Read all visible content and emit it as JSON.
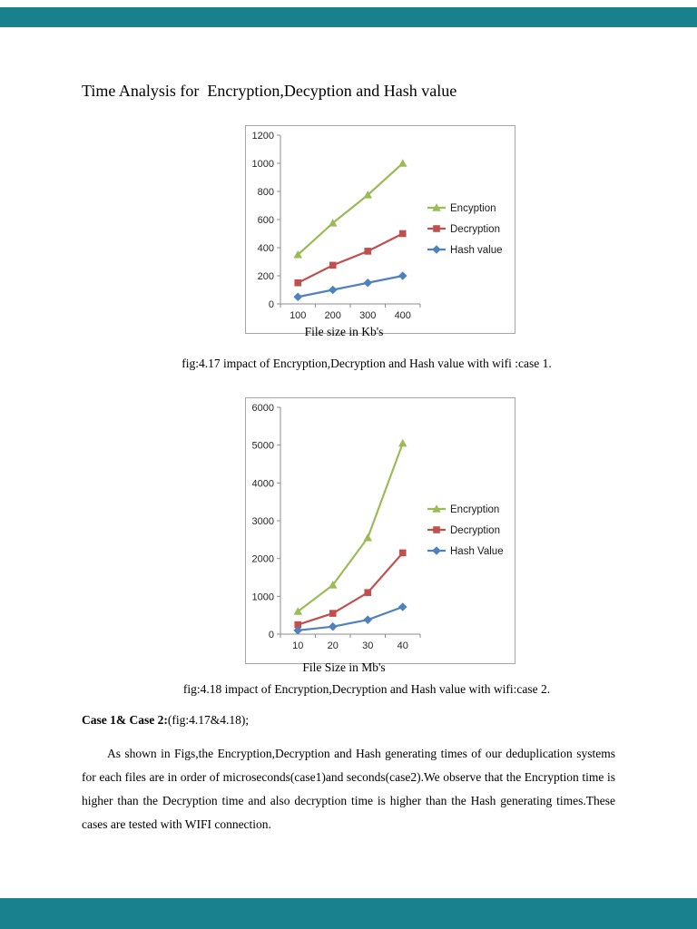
{
  "viewer": {
    "bar_color": "#19808d"
  },
  "page": {
    "title": "Time Analysis for  Encryption,Decyption and Hash value",
    "fig1_caption": "fig:4.17 impact of Encryption,Decryption and Hash value with wifi :case 1.",
    "fig2_caption": "fig:4.18 impact of Encryption,Decryption and Hash value with wifi:case 2.",
    "case_heading": "Case 1& Case 2:",
    "case_heading_rest": "(fig:4.17&4.18);",
    "body_paragraph": "As shown in Figs,the Encryption,Decryption and Hash generating times of our deduplication systems for each files are in order of microseconds(case1)and seconds(case2).We observe that the Encryption time is higher than the Decryption time and also decryption time is higher than the Hash generating times.These cases are tested with WIFI connection."
  },
  "chart_data": [
    {
      "type": "line",
      "title": "",
      "x": [
        100,
        200,
        300,
        400
      ],
      "xlabel": "File size in Kb's",
      "ylabel": "",
      "ylim": [
        0,
        1200
      ],
      "ytick_step": 200,
      "grid": false,
      "legend_position": "right",
      "series": [
        {
          "name": "Encyption",
          "values": [
            350,
            575,
            775,
            1000
          ],
          "color": "#9BBB59",
          "marker": "triangle"
        },
        {
          "name": "Decryption",
          "values": [
            150,
            275,
            375,
            500
          ],
          "color": "#C0504D",
          "marker": "square"
        },
        {
          "name": "Hash value",
          "values": [
            50,
            100,
            150,
            200
          ],
          "color": "#4F81BD",
          "marker": "diamond"
        }
      ]
    },
    {
      "type": "line",
      "title": "",
      "x": [
        10,
        20,
        30,
        40
      ],
      "xlabel": "File Size in Mb's",
      "ylabel": "",
      "ylim": [
        0,
        6000
      ],
      "ytick_step": 1000,
      "grid": false,
      "legend_position": "right",
      "series": [
        {
          "name": "Encryption",
          "values": [
            600,
            1300,
            2550,
            5050
          ],
          "color": "#9BBB59",
          "marker": "triangle"
        },
        {
          "name": "Decryption",
          "values": [
            250,
            550,
            1100,
            2150
          ],
          "color": "#C0504D",
          "marker": "square"
        },
        {
          "name": "Hash Value",
          "values": [
            100,
            200,
            380,
            720
          ],
          "color": "#4F81BD",
          "marker": "diamond"
        }
      ]
    }
  ]
}
